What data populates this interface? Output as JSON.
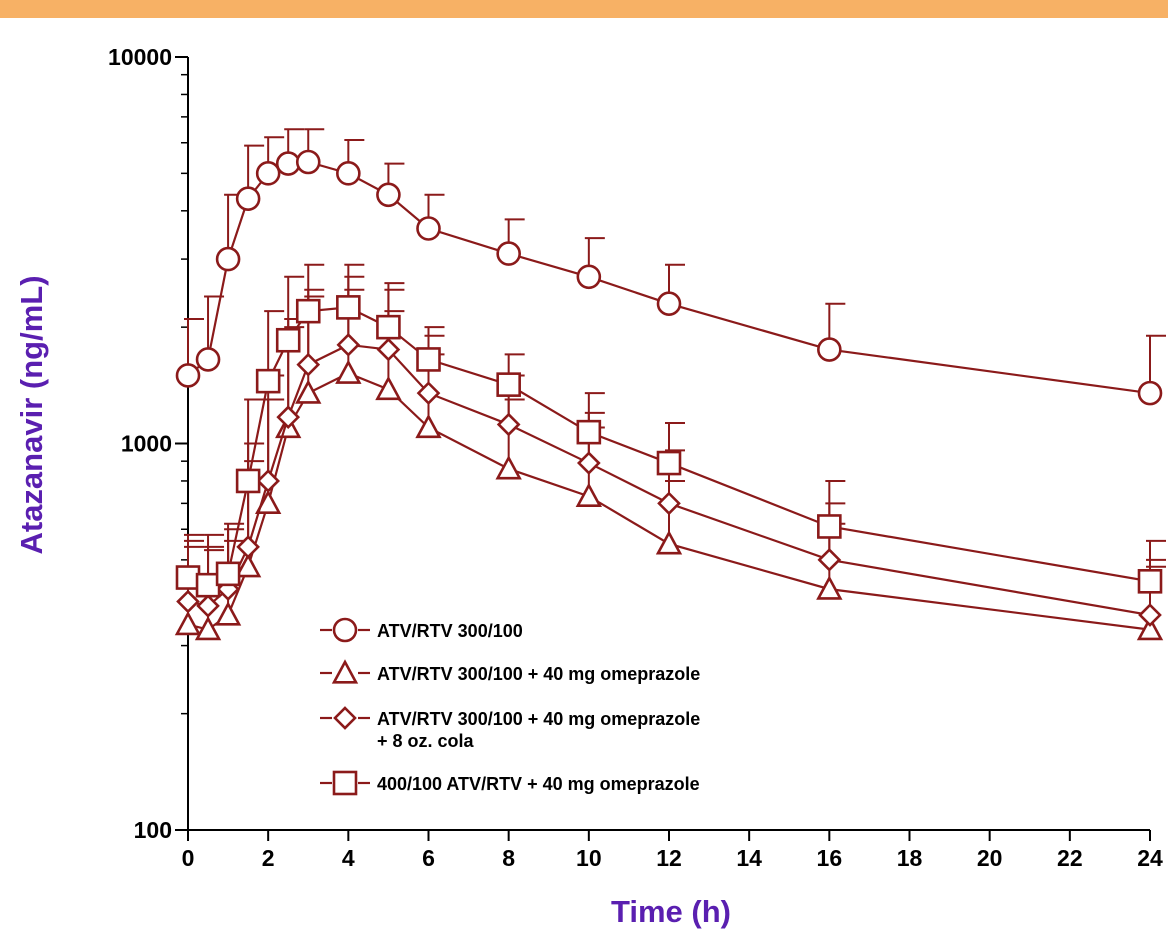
{
  "colors": {
    "top_bar": "#f7b165",
    "series": "#8b1a1a",
    "axis_title": "#5a1fb0",
    "axis": "#000000"
  },
  "chart_data": {
    "type": "line",
    "title": "",
    "xlabel": "Time (h)",
    "ylabel": "Atazanavir (ng/mL)",
    "xlim": [
      0,
      24
    ],
    "ylim": [
      100,
      10000
    ],
    "yscale": "log",
    "grid": false,
    "legend_position": "bottom-left-inside",
    "x_ticks": [
      "0",
      "2",
      "4",
      "6",
      "8",
      "10",
      "12",
      "14",
      "16",
      "18",
      "20",
      "22",
      "24"
    ],
    "y_ticks": [
      "100",
      "1000",
      "10000"
    ],
    "series": [
      {
        "name": "ATV/RTV 300/100",
        "marker": "circle",
        "x": [
          0,
          0.5,
          1,
          1.5,
          2,
          2.5,
          3,
          4,
          5,
          6,
          8,
          10,
          12,
          16,
          24
        ],
        "y": [
          1500,
          1650,
          3000,
          4300,
          5000,
          5300,
          5350,
          5000,
          4400,
          3600,
          3100,
          2700,
          2300,
          1750,
          1350
        ],
        "error_upper": [
          2100,
          2400,
          4400,
          5900,
          6200,
          6500,
          6500,
          6100,
          5300,
          4400,
          3800,
          3400,
          2900,
          2300,
          1900
        ]
      },
      {
        "name": "ATV/RTV 300/100 + 40 mg omeprazole",
        "marker": "triangle",
        "x": [
          0,
          0.5,
          1,
          1.5,
          2,
          2.5,
          3,
          4,
          5,
          6,
          8,
          10,
          12,
          16,
          24
        ],
        "y": [
          340,
          330,
          360,
          480,
          700,
          1100,
          1350,
          1520,
          1380,
          1100,
          860,
          730,
          550,
          420,
          330
        ],
        "error_upper": [
          540,
          530,
          560,
          900,
          1300,
          2000,
          2400,
          2500,
          2200,
          1700,
          1300,
          1100,
          800,
          620,
          480
        ]
      },
      {
        "name": "ATV/RTV 300/100 + 40 mg omeprazole + 8 oz. cola",
        "marker": "diamond",
        "x": [
          0,
          0.5,
          1,
          1.5,
          2,
          2.5,
          3,
          4,
          5,
          6,
          8,
          10,
          12,
          16,
          24
        ],
        "y": [
          390,
          380,
          420,
          540,
          800,
          1170,
          1600,
          1800,
          1750,
          1350,
          1120,
          890,
          700,
          500,
          360
        ],
        "error_upper": [
          560,
          540,
          620,
          1000,
          1500,
          2100,
          2500,
          2700,
          2500,
          1900,
          1500,
          1200,
          960,
          700,
          500
        ]
      },
      {
        "name": "400/100 ATV/RTV + 40 mg omeprazole",
        "marker": "square",
        "x": [
          0,
          0.5,
          1,
          1.5,
          2,
          2.5,
          3,
          4,
          5,
          6,
          8,
          10,
          12,
          16,
          24
        ],
        "y": [
          450,
          430,
          460,
          800,
          1450,
          1850,
          2200,
          2250,
          2000,
          1650,
          1420,
          1070,
          890,
          610,
          440
        ],
        "error_upper": [
          580,
          580,
          600,
          1300,
          2200,
          2700,
          2900,
          2900,
          2600,
          2000,
          1700,
          1350,
          1130,
          800,
          560
        ]
      }
    ],
    "legend": [
      {
        "marker": "circle",
        "label_lines": [
          "ATV/RTV 300/100"
        ]
      },
      {
        "marker": "triangle",
        "label_lines": [
          "ATV/RTV 300/100 + 40 mg omeprazole"
        ]
      },
      {
        "marker": "diamond",
        "label_lines": [
          "ATV/RTV 300/100 + 40 mg omeprazole",
          "+ 8 oz. cola"
        ]
      },
      {
        "marker": "square",
        "label_lines": [
          "400/100 ATV/RTV + 40 mg omeprazole"
        ]
      }
    ]
  }
}
